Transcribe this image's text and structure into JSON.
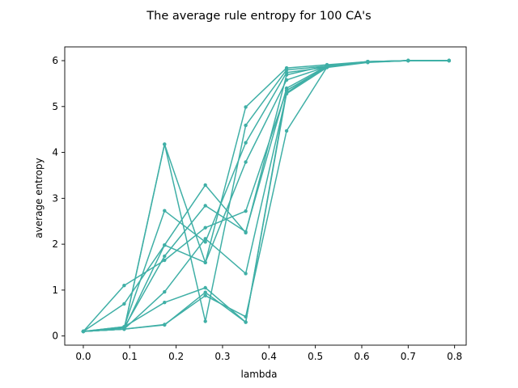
{
  "chart_data": {
    "type": "line",
    "title": "The average rule entropy for 100 CA's",
    "xlabel": "lambda",
    "ylabel": "average entropy",
    "xlim": [
      -0.04,
      0.825
    ],
    "ylim": [
      -0.2,
      6.3
    ],
    "xticks": [
      0.0,
      0.1,
      0.2,
      0.3,
      0.4,
      0.5,
      0.6,
      0.7,
      0.8
    ],
    "yticks": [
      0,
      1,
      2,
      3,
      4,
      5,
      6
    ],
    "grid": false,
    "line_color": "#3fafa6",
    "series": [
      {
        "x": [
          0.0,
          0.088,
          0.175,
          0.263,
          0.35,
          0.438,
          0.525,
          0.613,
          0.7,
          0.788
        ],
        "y": [
          0.1,
          0.15,
          4.18,
          1.6,
          4.99,
          5.84,
          5.91,
          5.98,
          6.0,
          6.0
        ]
      },
      {
        "x": [
          0.0,
          0.088,
          0.175,
          0.263,
          0.35,
          0.438,
          0.525,
          0.613,
          0.7,
          0.788
        ],
        "y": [
          0.1,
          0.15,
          4.18,
          0.32,
          4.59,
          5.8,
          5.88,
          5.97,
          6.0,
          6.0
        ]
      },
      {
        "x": [
          0.0,
          0.088,
          0.175,
          0.263,
          0.35,
          0.438,
          0.525,
          0.613,
          0.7,
          0.788
        ],
        "y": [
          0.1,
          0.2,
          2.73,
          2.05,
          4.21,
          5.74,
          5.86,
          5.97,
          6.0,
          6.0
        ]
      },
      {
        "x": [
          0.0,
          0.088,
          0.175,
          0.263,
          0.35,
          0.438,
          0.525,
          0.613,
          0.7,
          0.788
        ],
        "y": [
          0.1,
          0.15,
          1.98,
          3.29,
          2.25,
          5.69,
          5.89,
          5.98,
          6.0,
          6.0
        ]
      },
      {
        "x": [
          0.0,
          0.088,
          0.175,
          0.263,
          0.35,
          0.438,
          0.525,
          0.613,
          0.7,
          0.788
        ],
        "y": [
          0.1,
          0.18,
          1.74,
          2.84,
          2.27,
          5.4,
          5.88,
          5.98,
          6.0,
          6.0
        ]
      },
      {
        "x": [
          0.0,
          0.088,
          0.175,
          0.263,
          0.35,
          0.438,
          0.525,
          0.613,
          0.7,
          0.788
        ],
        "y": [
          0.1,
          0.7,
          1.98,
          1.6,
          3.79,
          5.58,
          5.87,
          5.97,
          6.0,
          6.0
        ]
      },
      {
        "x": [
          0.0,
          0.088,
          0.175,
          0.263,
          0.35,
          0.438,
          0.525,
          0.613,
          0.7,
          0.788
        ],
        "y": [
          0.1,
          1.1,
          1.65,
          2.36,
          2.72,
          5.35,
          5.86,
          5.97,
          6.0,
          6.0
        ]
      },
      {
        "x": [
          0.0,
          0.088,
          0.175,
          0.263,
          0.35,
          0.438,
          0.525,
          0.613,
          0.7,
          0.788
        ],
        "y": [
          0.1,
          0.15,
          0.96,
          2.12,
          1.36,
          5.28,
          5.85,
          5.96,
          6.0,
          6.0
        ]
      },
      {
        "x": [
          0.0,
          0.088,
          0.175,
          0.263,
          0.35,
          0.438,
          0.525,
          0.613,
          0.7,
          0.788
        ],
        "y": [
          0.1,
          0.15,
          0.25,
          0.88,
          0.42,
          4.47,
          5.86,
          5.97,
          6.0,
          6.0
        ]
      },
      {
        "x": [
          0.0,
          0.088,
          0.175,
          0.263,
          0.35,
          0.438,
          0.525,
          0.613,
          0.7,
          0.788
        ],
        "y": [
          0.1,
          0.2,
          0.73,
          1.05,
          0.3,
          5.3,
          5.89,
          5.98,
          6.0,
          6.0
        ]
      },
      {
        "x": [
          0.0,
          0.088,
          0.175,
          0.263,
          0.35,
          0.438,
          0.525,
          0.613,
          0.7,
          0.788
        ],
        "y": [
          0.1,
          0.15,
          0.24,
          0.95,
          0.3,
          5.35,
          5.86,
          5.97,
          6.0,
          6.0
        ]
      }
    ]
  }
}
